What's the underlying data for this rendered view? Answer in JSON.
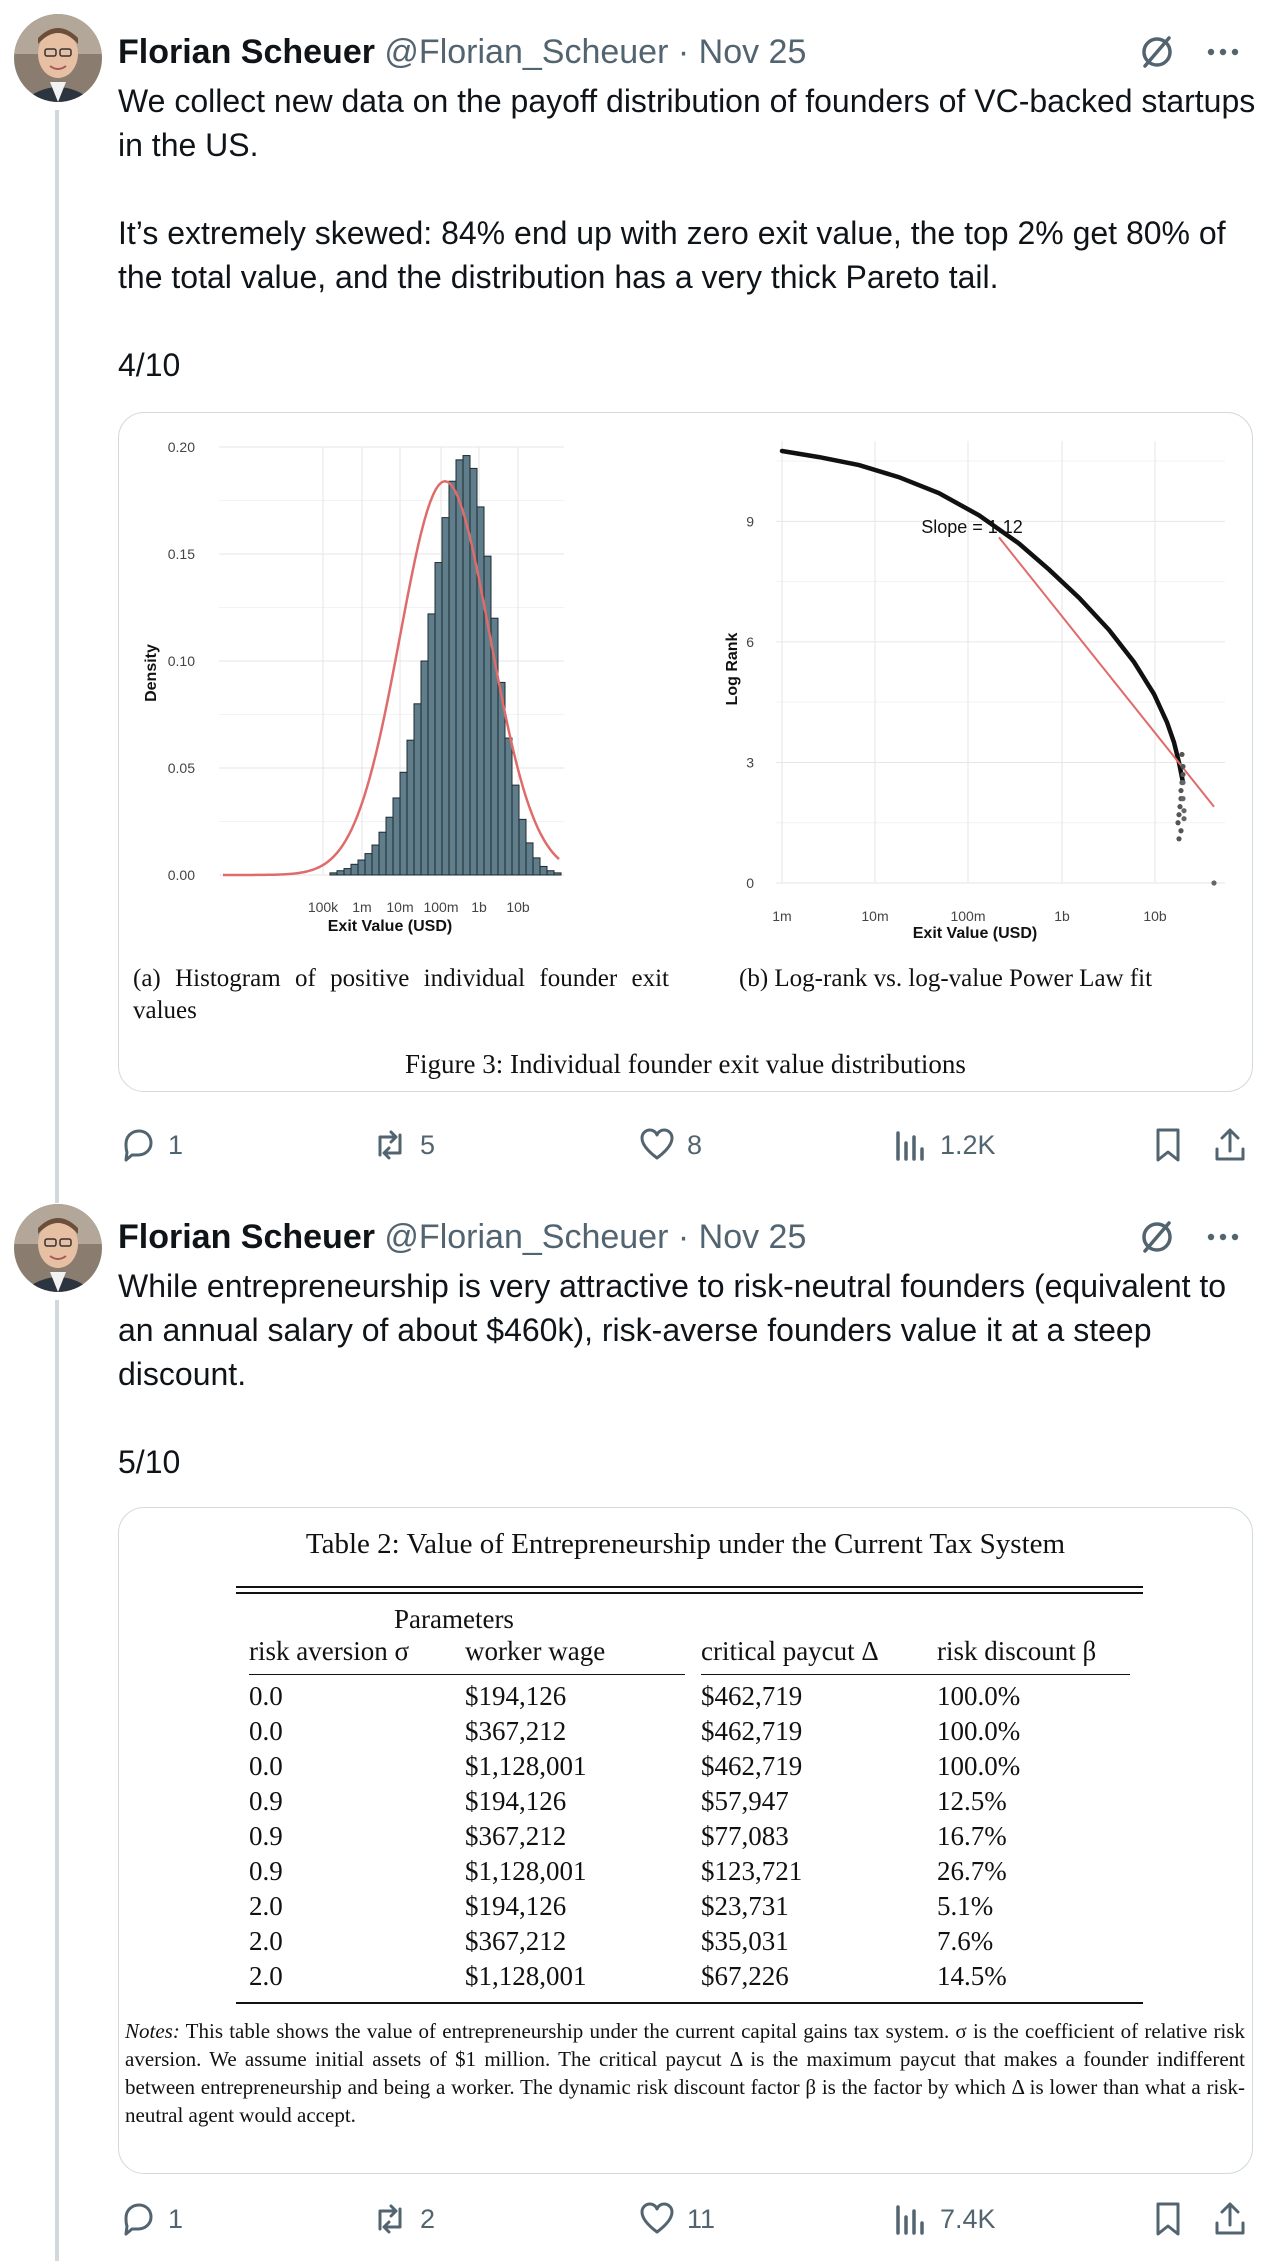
{
  "tweets": [
    {
      "author_name": "Florian Scheuer",
      "handle": "@Florian_Scheuer",
      "date": "Nov 25",
      "text": "We collect new data on the payoff distribution of founders of VC-backed startups in the US.\n\nIt’s extremely skewed: 84% end up with zero exit value, the top 2% get 80% of the total value, and the distribution has a very thick Pareto tail.\n\n4/10",
      "figure": {
        "caption": "Figure 3: Individual founder exit value distributions",
        "subcaption_a": "(a) Histogram of positive individual founder exit values",
        "subcaption_b": "(b) Log-rank vs. log-value Power Law fit",
        "slope_label": "Slope = 1.12"
      },
      "stats": {
        "replies": "1",
        "reposts": "5",
        "likes": "8",
        "views": "1.2K"
      }
    },
    {
      "author_name": "Florian Scheuer",
      "handle": "@Florian_Scheuer",
      "date": "Nov 25",
      "text": "While entrepreneurship is very attractive to risk-neutral founders (equivalent to an annual salary of about $460k), risk-averse founders value it at a steep discount.\n\n5/10",
      "table": {
        "title": "Table 2: Value of Entrepreneurship under the Current Tax System",
        "group_header": "Parameters",
        "columns": [
          "risk aversion σ",
          "worker wage",
          "critical paycut Δ",
          "risk discount β"
        ],
        "rows": [
          [
            "0.0",
            "$194,126",
            "$462,719",
            "100.0%"
          ],
          [
            "0.0",
            "$367,212",
            "$462,719",
            "100.0%"
          ],
          [
            "0.0",
            "$1,128,001",
            "$462,719",
            "100.0%"
          ],
          [
            "0.9",
            "$194,126",
            "$57,947",
            "12.5%"
          ],
          [
            "0.9",
            "$367,212",
            "$77,083",
            "16.7%"
          ],
          [
            "0.9",
            "$1,128,001",
            "$123,721",
            "26.7%"
          ],
          [
            "2.0",
            "$194,126",
            "$23,731",
            "5.1%"
          ],
          [
            "2.0",
            "$367,212",
            "$35,031",
            "7.6%"
          ],
          [
            "2.0",
            "$1,128,001",
            "$67,226",
            "14.5%"
          ]
        ],
        "notes_label": "Notes:",
        "notes": "This table shows the value of entrepreneurship under the current capital gains tax system. σ is the coefficient of relative risk aversion. We assume initial assets of $1 million. The critical paycut Δ is the maximum paycut that makes a founder indifferent between entrepreneurship and being a worker. The dynamic risk discount factor β is the factor by which Δ is lower than what a risk-neutral agent would accept."
      },
      "stats": {
        "replies": "1",
        "reposts": "2",
        "likes": "11",
        "views": "7.4K"
      }
    }
  ],
  "chart_data": [
    {
      "type": "bar",
      "title": "(a) Histogram of positive individual founder exit values",
      "xlabel": "Exit Value (USD)",
      "ylabel": "Density",
      "ylim": [
        0,
        0.2
      ],
      "yticks": [
        "0.00",
        "0.05",
        "0.10",
        "0.15",
        "0.20"
      ],
      "xticks": [
        "100k",
        "1m",
        "10m",
        "100m",
        "1b",
        "10b"
      ],
      "bin_values": [
        0.001,
        0.002,
        0.003,
        0.005,
        0.007,
        0.01,
        0.014,
        0.02,
        0.027,
        0.036,
        0.048,
        0.063,
        0.08,
        0.1,
        0.122,
        0.146,
        0.167,
        0.184,
        0.194,
        0.196,
        0.19,
        0.172,
        0.149,
        0.12,
        0.09,
        0.064,
        0.042,
        0.026,
        0.015,
        0.008,
        0.004,
        0.002,
        0.001
      ],
      "fit_curve": "normal density (red)",
      "colors": {
        "bars": "#5f7d8a",
        "fit": "#e06b6b"
      }
    },
    {
      "type": "scatter",
      "title": "(b) Log-rank vs. log-value Power Law fit",
      "xlabel": "Exit Value (USD)",
      "ylabel": "Log Rank",
      "ylim": [
        0,
        11
      ],
      "yticks": [
        "0",
        "3",
        "6",
        "9"
      ],
      "xticks": [
        "1m",
        "10m",
        "100m",
        "1b",
        "10b"
      ],
      "annotation": "Slope = 1.12",
      "fit_slope": 1.12,
      "colors": {
        "points": "#111111",
        "fit": "#e06b6b"
      }
    }
  ]
}
